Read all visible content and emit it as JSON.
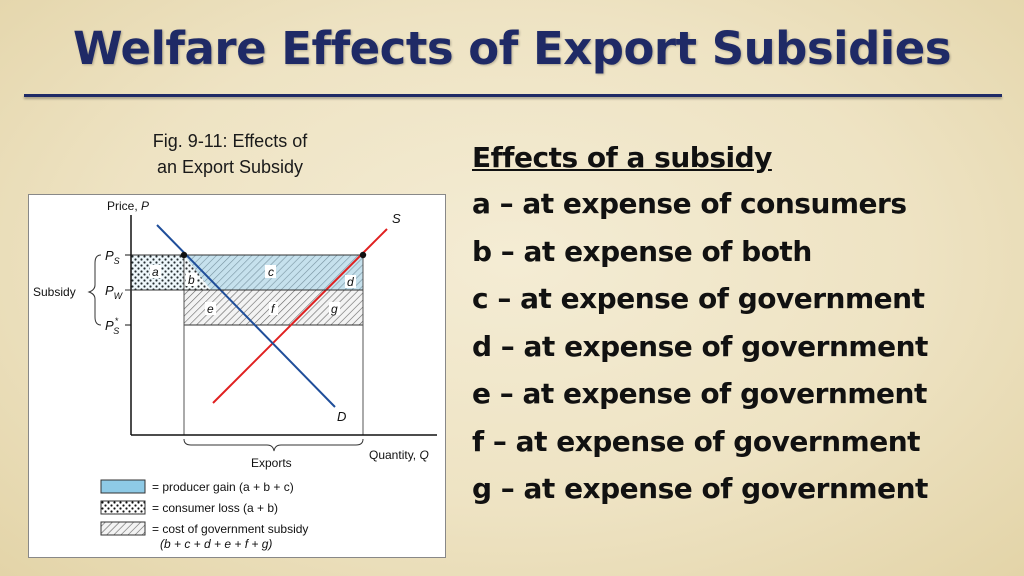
{
  "title": "Welfare Effects of Export Subsidies",
  "figure": {
    "caption_line1": "Fig. 9-11: Effects of",
    "caption_line2": "an Export Subsidy",
    "y_axis_label": "Price, P",
    "x_axis_label": "Quantity, Q",
    "supply_label": "S",
    "demand_label": "D",
    "price_ps": "P",
    "price_ps_sub": "S",
    "price_pw": "P",
    "price_pw_sub": "W",
    "price_ps_star": "P",
    "price_ps_star_sub": "S",
    "price_ps_star_sup": "*",
    "subsidy_label": "Subsidy",
    "exports_label": "Exports",
    "areas": {
      "a": "a",
      "b": "b",
      "c": "c",
      "d": "d",
      "e": "e",
      "f": "f",
      "g": "g"
    },
    "legend": {
      "producer_gain": "= producer gain (a + b + c)",
      "consumer_loss": "= consumer loss (a + b)",
      "cost_line1": "= cost of government subsidy",
      "cost_line2": "(b + c + d + e + f + g)"
    },
    "colors": {
      "supply": "#e02020",
      "demand": "#1f4e9a",
      "producer_gain_fill": "#8ecae6"
    }
  },
  "effects": {
    "heading": "Effects of a subsidy",
    "items": [
      "a – at expense of consumers",
      "b – at expense of both",
      "c – at expense of government",
      "d – at expense of government",
      "e – at expense of government",
      "f – at expense of government",
      "g – at expense of government"
    ]
  }
}
